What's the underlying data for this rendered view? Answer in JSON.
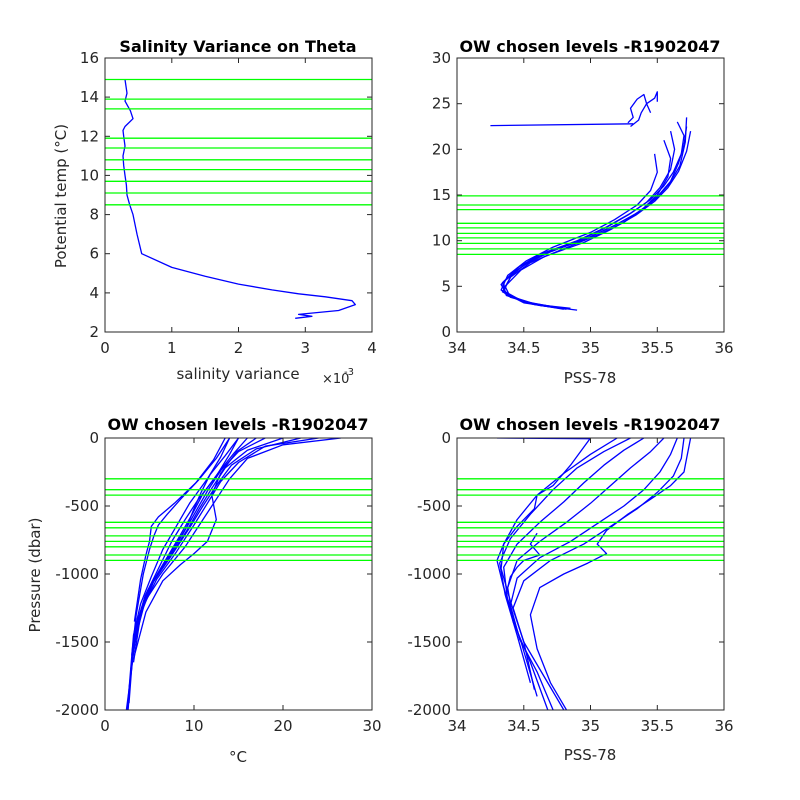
{
  "colors": {
    "profile": "#0000ff",
    "level_line": "#00ff00",
    "axis": "#262626",
    "background": "#ffffff"
  },
  "chart_data": [
    {
      "id": "tl",
      "type": "line",
      "title": "Salinity Variance on Theta",
      "xlabel": "salinity variance",
      "x_exponent_base": "×10",
      "x_exponent_power": "-3",
      "ylabel": "Potential temp (°C)",
      "xlim": [
        0,
        4
      ],
      "ylim": [
        2,
        16
      ],
      "xticks": [
        0,
        1,
        2,
        3,
        4
      ],
      "xtick_labels": [
        "0",
        "1",
        "2",
        "3",
        "4"
      ],
      "yticks": [
        2,
        4,
        6,
        8,
        10,
        12,
        14,
        16
      ],
      "ytick_labels": [
        "2",
        "4",
        "6",
        "8",
        "10",
        "12",
        "14",
        "16"
      ],
      "level_lines": [
        8.5,
        9.1,
        9.7,
        10.3,
        10.8,
        11.4,
        11.9,
        13.4,
        13.9,
        14.9
      ],
      "series": [
        {
          "x": [
            2.85,
            3.1,
            2.9,
            3.5,
            3.75,
            3.7,
            3.3,
            2.9,
            2.5,
            2.0,
            1.5,
            1.0,
            0.55,
            0.48,
            0.42,
            0.37,
            0.33,
            0.32,
            0.3,
            0.28,
            0.27,
            0.3,
            0.28,
            0.27,
            0.3,
            0.42,
            0.38,
            0.3,
            0.33,
            0.3
          ],
          "y": [
            2.7,
            2.8,
            2.9,
            3.1,
            3.4,
            3.6,
            3.8,
            3.95,
            4.15,
            4.45,
            4.85,
            5.3,
            6.0,
            7.0,
            8.0,
            8.5,
            9.0,
            9.5,
            10.0,
            10.5,
            11.0,
            11.5,
            12.0,
            12.3,
            12.5,
            12.9,
            13.3,
            13.8,
            14.2,
            14.9
          ]
        }
      ]
    },
    {
      "id": "tr",
      "type": "line",
      "title": "OW chosen levels -R1902047",
      "xlabel": "PSS-78",
      "ylabel": "",
      "xlim": [
        34,
        36
      ],
      "ylim": [
        0,
        30
      ],
      "xticks": [
        34,
        34.5,
        35,
        35.5,
        36
      ],
      "xtick_labels": [
        "34",
        "34.5",
        "35",
        "35.5",
        "36"
      ],
      "yticks": [
        0,
        5,
        10,
        15,
        20,
        25,
        30
      ],
      "ytick_labels": [
        "0",
        "5",
        "10",
        "15",
        "20",
        "25",
        "30"
      ],
      "level_lines": [
        8.5,
        9.1,
        9.7,
        10.3,
        10.8,
        11.4,
        11.9,
        13.4,
        13.9,
        14.9
      ],
      "series": [
        {
          "x": [
            34.85,
            34.6,
            34.38,
            34.33,
            34.45,
            34.62,
            34.9,
            35.12,
            35.3,
            35.45,
            35.55,
            35.62,
            35.68,
            35.7,
            35.65
          ],
          "y": [
            2.6,
            3.0,
            4.0,
            5.2,
            7.0,
            8.5,
            10.0,
            11.5,
            13.0,
            14.5,
            16.0,
            17.5,
            19.5,
            21.5,
            23.0
          ]
        },
        {
          "x": [
            34.8,
            34.55,
            34.36,
            34.35,
            34.5,
            34.7,
            34.98,
            35.2,
            35.38,
            35.5,
            35.6,
            35.66,
            35.7,
            35.72
          ],
          "y": [
            2.5,
            3.1,
            4.2,
            5.5,
            7.3,
            8.8,
            10.3,
            11.8,
            13.3,
            14.8,
            16.5,
            18.5,
            20.5,
            22.5
          ]
        },
        {
          "x": [
            34.75,
            34.5,
            34.35,
            34.4,
            34.55,
            34.78,
            35.05,
            35.25,
            35.4,
            35.5,
            35.58,
            35.6,
            35.55
          ],
          "y": [
            2.7,
            3.3,
            4.5,
            6.0,
            7.6,
            9.0,
            10.6,
            12.0,
            13.6,
            15.0,
            17.0,
            19.0,
            21.0
          ]
        },
        {
          "x": [
            34.7,
            34.48,
            34.33,
            34.38,
            34.52,
            34.72,
            35.0,
            35.18,
            35.35,
            35.45,
            35.5,
            35.48
          ],
          "y": [
            2.8,
            3.4,
            4.6,
            6.2,
            7.8,
            9.3,
            10.9,
            12.3,
            13.9,
            15.5,
            17.5,
            19.5
          ]
        },
        {
          "x": [
            34.9,
            34.62,
            34.4,
            34.36,
            34.48,
            34.66,
            34.95,
            35.15,
            35.34,
            35.48,
            35.58,
            35.66,
            35.72,
            35.75
          ],
          "y": [
            2.4,
            2.9,
            3.8,
            5.0,
            6.8,
            8.3,
            9.8,
            11.2,
            12.8,
            14.3,
            15.8,
            17.6,
            19.8,
            22.0
          ]
        },
        {
          "x": [
            34.78,
            34.5,
            34.34,
            34.42,
            34.6,
            34.88,
            35.1,
            35.28,
            35.42,
            35.52,
            35.6,
            35.63,
            35.6
          ],
          "y": [
            2.6,
            3.2,
            4.4,
            6.5,
            8.2,
            9.8,
            11.3,
            12.8,
            14.2,
            15.8,
            17.8,
            20.0,
            22.0
          ]
        },
        {
          "x": [
            34.82,
            34.58,
            34.37,
            34.34,
            34.47,
            34.68,
            34.97,
            35.17,
            35.36,
            35.49,
            35.59,
            35.67,
            35.71,
            35.72
          ],
          "y": [
            2.5,
            3.0,
            4.0,
            5.4,
            7.2,
            8.7,
            10.2,
            11.6,
            13.1,
            14.6,
            16.2,
            18.2,
            20.8,
            23.5
          ]
        },
        {
          "x": [
            35.28,
            35.32,
            35.3,
            35.35,
            35.4,
            35.42,
            35.45
          ],
          "y": [
            22.9,
            23.5,
            24.5,
            25.5,
            26.0,
            25.0,
            24.0
          ]
        },
        {
          "x": [
            35.3,
            35.36,
            35.38,
            35.42,
            35.48,
            35.5,
            35.5
          ],
          "y": [
            22.5,
            23.2,
            24.0,
            25.0,
            25.6,
            26.3,
            25.2
          ]
        },
        {
          "x": [
            34.25,
            35.32
          ],
          "y": [
            22.6,
            22.8
          ]
        }
      ]
    },
    {
      "id": "bl",
      "type": "line",
      "title": "OW chosen levels -R1902047",
      "xlabel": "°C",
      "ylabel": "Pressure (dbar)",
      "xlim": [
        0,
        30
      ],
      "ylim": [
        -2000,
        0
      ],
      "xticks": [
        0,
        10,
        20,
        30
      ],
      "xtick_labels": [
        "0",
        "10",
        "20",
        "30"
      ],
      "yticks": [
        -2000,
        -1500,
        -1000,
        -500,
        0
      ],
      "ytick_labels": [
        "-2000",
        "-1500",
        "-1000",
        "-500",
        "0"
      ],
      "level_lines": [
        -300,
        -380,
        -420,
        -620,
        -660,
        -720,
        -760,
        -800,
        -860,
        -900
      ],
      "series": [
        {
          "x": [
            26.5,
            20,
            16,
            14,
            12.5,
            11,
            9,
            6.5,
            4.5,
            3.3,
            2.8,
            2.4
          ],
          "y": [
            0,
            -50,
            -150,
            -300,
            -450,
            -600,
            -800,
            -1000,
            -1200,
            -1500,
            -1800,
            -2000
          ]
        },
        {
          "x": [
            24,
            18,
            15,
            13,
            11.5,
            10,
            8,
            5.8,
            4.2,
            3.2,
            2.7,
            2.5
          ],
          "y": [
            0,
            -60,
            -180,
            -320,
            -480,
            -640,
            -840,
            -1040,
            -1250,
            -1550,
            -1850,
            -2000
          ]
        },
        {
          "x": [
            22,
            17,
            14.2,
            12.5,
            11,
            9.5,
            7.5,
            5.4,
            4.0,
            3.1,
            2.7
          ],
          "y": [
            0,
            -80,
            -200,
            -350,
            -500,
            -660,
            -860,
            -1060,
            -1280,
            -1600,
            -1950
          ]
        },
        {
          "x": [
            20,
            16,
            13.5,
            12,
            10.6,
            9.2,
            7.2,
            5.2,
            3.9,
            3.0,
            2.6
          ],
          "y": [
            0,
            -90,
            -220,
            -370,
            -520,
            -680,
            -880,
            -1080,
            -1300,
            -1650,
            -2000
          ]
        },
        {
          "x": [
            18,
            15,
            13,
            11.5,
            10.2,
            8.8,
            6.9,
            5.0,
            3.8,
            2.9
          ],
          "y": [
            0,
            -100,
            -240,
            -390,
            -540,
            -700,
            -900,
            -1100,
            -1330,
            -1700
          ]
        },
        {
          "x": [
            16,
            14.5,
            12.8,
            11,
            9.8,
            8.4,
            6.6,
            4.8,
            3.6,
            2.9
          ],
          "y": [
            0,
            -110,
            -250,
            -410,
            -560,
            -720,
            -920,
            -1120,
            -1360,
            -1750
          ]
        },
        {
          "x": [
            15,
            14,
            12.5,
            10.5,
            9.0,
            7.5,
            6.0,
            4.5,
            3.4,
            2.8
          ],
          "y": [
            0,
            -120,
            -280,
            -450,
            -600,
            -760,
            -960,
            -1160,
            -1400,
            -1800
          ]
        },
        {
          "x": [
            14,
            13,
            11.5,
            9.5,
            8.0,
            6.5,
            5.2,
            4.0,
            3.2,
            2.7
          ],
          "y": [
            0,
            -140,
            -300,
            -480,
            -650,
            -820,
            -1020,
            -1220,
            -1450,
            -1850
          ]
        },
        {
          "x": [
            14,
            12.5,
            10.5,
            8.5,
            7.0,
            6.0,
            5.5,
            5.0,
            4.3,
            3.5,
            3.0
          ],
          "y": [
            0,
            -150,
            -310,
            -450,
            -560,
            -640,
            -720,
            -820,
            -1000,
            -1300,
            -1600
          ]
        },
        {
          "x": [
            15,
            13.5,
            11.8,
            10.8,
            10.0,
            9.2,
            8.0,
            6.8,
            5.5,
            4.0,
            3.2
          ],
          "y": [
            0,
            -130,
            -270,
            -400,
            -520,
            -650,
            -780,
            -900,
            -1050,
            -1300,
            -1650
          ]
        },
        {
          "x": [
            17,
            14.8,
            13,
            12,
            12.5,
            11.5,
            10,
            8.5,
            6.5,
            4.6,
            3.3
          ],
          "y": [
            0,
            -100,
            -260,
            -420,
            -600,
            -760,
            -850,
            -930,
            -1050,
            -1280,
            -1600
          ]
        },
        {
          "x": [
            13.5,
            12.2,
            10.2,
            7.8,
            6.0,
            5.2,
            5.0,
            4.6,
            4.0,
            3.3
          ],
          "y": [
            0,
            -160,
            -330,
            -480,
            -580,
            -650,
            -760,
            -860,
            -1040,
            -1350
          ]
        }
      ]
    },
    {
      "id": "br",
      "type": "line",
      "title": "OW chosen levels -R1902047",
      "xlabel": "PSS-78",
      "ylabel": "",
      "xlim": [
        34,
        36
      ],
      "ylim": [
        -2000,
        0
      ],
      "xticks": [
        34,
        34.5,
        35,
        35.5,
        36
      ],
      "xtick_labels": [
        "34",
        "34.5",
        "35",
        "35.5",
        "36"
      ],
      "yticks": [
        -2000,
        -1500,
        -1000,
        -500,
        0
      ],
      "ytick_labels": [
        "-2000",
        "-1500",
        "-1000",
        "-500",
        "0"
      ],
      "level_lines": [
        -300,
        -380,
        -420,
        -620,
        -660,
        -720,
        -760,
        -800,
        -860,
        -900
      ],
      "series": [
        {
          "x": [
            35.7,
            35.68,
            35.62,
            35.5,
            35.35,
            35.15,
            34.95,
            34.7,
            34.5,
            34.42,
            34.5,
            34.65,
            34.8
          ],
          "y": [
            0,
            -150,
            -280,
            -400,
            -520,
            -650,
            -780,
            -900,
            -1050,
            -1250,
            -1500,
            -1750,
            -2000
          ]
        },
        {
          "x": [
            35.65,
            35.6,
            35.52,
            35.4,
            35.25,
            35.05,
            34.85,
            34.62,
            34.45,
            34.4,
            34.47,
            34.6,
            34.72
          ],
          "y": [
            0,
            -120,
            -250,
            -380,
            -500,
            -630,
            -760,
            -880,
            -1030,
            -1230,
            -1480,
            -1720,
            -2000
          ]
        },
        {
          "x": [
            35.55,
            35.45,
            35.3,
            35.15,
            35.0,
            34.82,
            34.62,
            34.45,
            34.38,
            34.42,
            34.55,
            34.68
          ],
          "y": [
            0,
            -100,
            -220,
            -350,
            -480,
            -620,
            -760,
            -900,
            -1100,
            -1350,
            -1650,
            -2000
          ]
        },
        {
          "x": [
            35.4,
            35.25,
            35.1,
            34.95,
            34.8,
            34.62,
            34.45,
            34.35,
            34.38,
            34.48,
            34.6
          ],
          "y": [
            0,
            -90,
            -200,
            -330,
            -470,
            -620,
            -780,
            -950,
            -1200,
            -1500,
            -1900
          ]
        },
        {
          "x": [
            35.3,
            35.1,
            34.9,
            34.72,
            34.55,
            34.4,
            34.32,
            34.36,
            34.45,
            34.55
          ],
          "y": [
            0,
            -100,
            -220,
            -380,
            -560,
            -740,
            -920,
            -1150,
            -1450,
            -1800
          ]
        },
        {
          "x": [
            35.2,
            35.0,
            34.8,
            34.6,
            34.45,
            34.35,
            34.33,
            34.4,
            34.5,
            34.58
          ],
          "y": [
            0,
            -120,
            -260,
            -420,
            -600,
            -780,
            -960,
            -1200,
            -1500,
            -1850
          ]
        },
        {
          "x": [
            35.75,
            35.72,
            35.7,
            35.6,
            35.45,
            35.28,
            35.12,
            35.05,
            35.12,
            34.98,
            34.8,
            34.62,
            34.55,
            34.6,
            34.7,
            34.82
          ],
          "y": [
            0,
            -150,
            -250,
            -350,
            -450,
            -560,
            -680,
            -780,
            -850,
            -920,
            -1000,
            -1100,
            -1300,
            -1550,
            -1800,
            -2000
          ]
        },
        {
          "x": [
            35.0,
            34.85,
            34.72,
            34.6,
            34.58,
            34.45,
            34.35,
            34.3,
            34.35,
            34.42
          ],
          "y": [
            0,
            -200,
            -350,
            -420,
            -520,
            -650,
            -780,
            -900,
            -1100,
            -1300
          ]
        },
        {
          "x": [
            34.6,
            34.55,
            34.62,
            34.5,
            34.45,
            34.4,
            34.38
          ],
          "y": [
            -700,
            -780,
            -860,
            -900,
            -950,
            -1020,
            -1100
          ]
        },
        {
          "x": [
            34.3,
            35.0
          ],
          "y": [
            0,
            -5
          ]
        }
      ]
    }
  ]
}
